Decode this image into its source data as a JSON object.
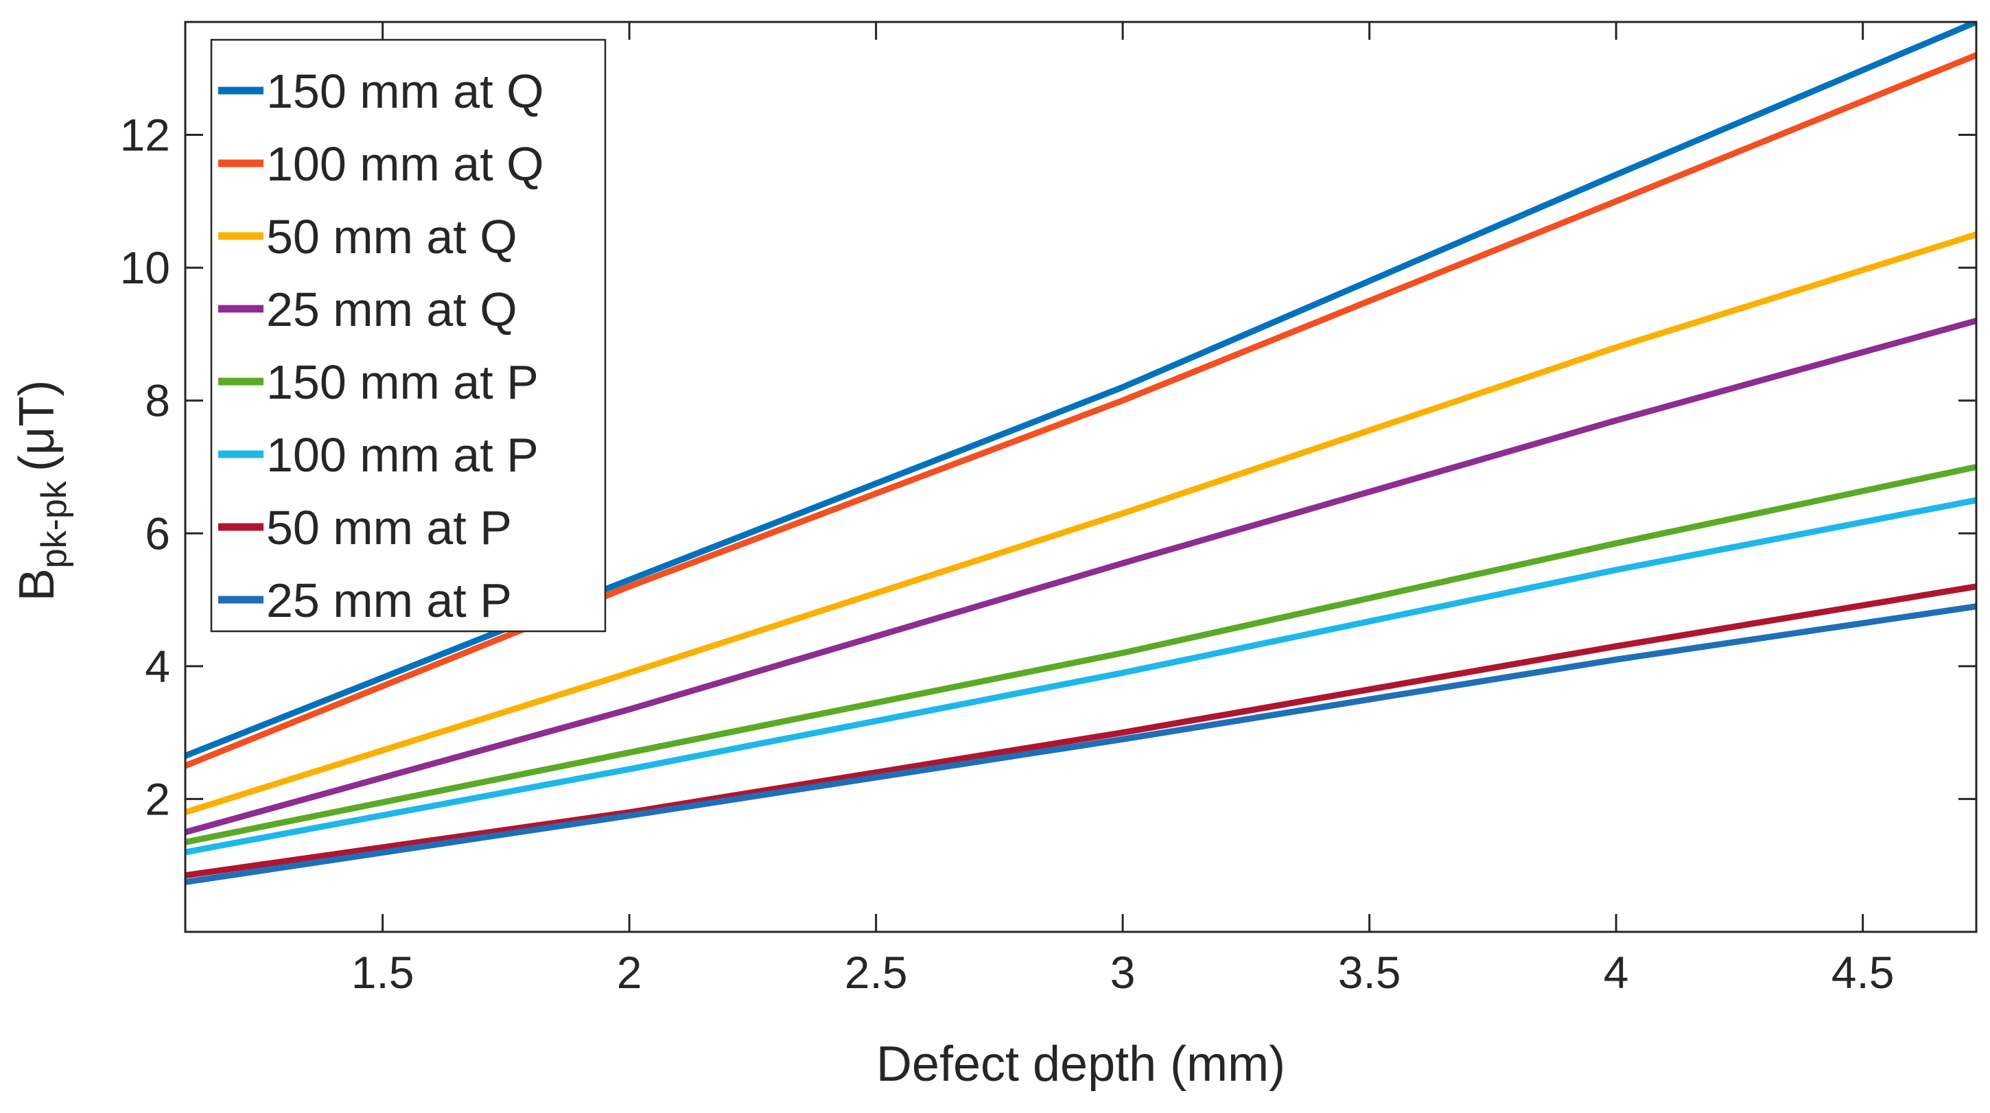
{
  "chart_data": {
    "type": "line",
    "title": "",
    "xlabel": "Defect depth (mm)",
    "ylabel": {
      "main": "B",
      "sub": "pk-pk",
      "unit": "(μT)"
    },
    "xlim": [
      1.1,
      4.73
    ],
    "ylim": [
      0,
      13.7
    ],
    "xticks": [
      1.5,
      2,
      2.5,
      3,
      3.5,
      4,
      4.5
    ],
    "xtick_labels": [
      "1.5",
      "2",
      "2.5",
      "3",
      "3.5",
      "4",
      "4.5"
    ],
    "yticks": [
      2,
      4,
      6,
      8,
      10,
      12
    ],
    "ytick_labels": [
      "2",
      "4",
      "6",
      "8",
      "10",
      "12"
    ],
    "grid": false,
    "legend_position": "top-left",
    "x": [
      1.1,
      2,
      3,
      4,
      4.73
    ],
    "series": [
      {
        "name": "150 mm at Q",
        "color": "#0072BD",
        "values": [
          2.65,
          5.3,
          8.2,
          11.4,
          13.7
        ]
      },
      {
        "name": "100 mm at Q",
        "color": "#F25022",
        "values": [
          2.5,
          5.2,
          8.0,
          11.0,
          13.2
        ]
      },
      {
        "name": "50 mm at Q",
        "color": "#FBB000",
        "values": [
          1.8,
          3.9,
          6.3,
          8.8,
          10.5
        ]
      },
      {
        "name": "25 mm at Q",
        "color": "#8E2C91",
        "values": [
          1.5,
          3.35,
          5.55,
          7.7,
          9.2
        ]
      },
      {
        "name": "150 mm at P",
        "color": "#5AAA26",
        "values": [
          1.35,
          2.7,
          4.2,
          5.85,
          7.0
        ]
      },
      {
        "name": "100 mm at P",
        "color": "#1EB7EA",
        "values": [
          1.2,
          2.45,
          3.9,
          5.45,
          6.5
        ]
      },
      {
        "name": "50 mm at P",
        "color": "#B0152F",
        "values": [
          0.85,
          1.8,
          3.0,
          4.3,
          5.2
        ]
      },
      {
        "name": "25 mm at P",
        "color": "#1F6FB8",
        "values": [
          0.75,
          1.75,
          2.9,
          4.1,
          4.9
        ]
      }
    ]
  }
}
